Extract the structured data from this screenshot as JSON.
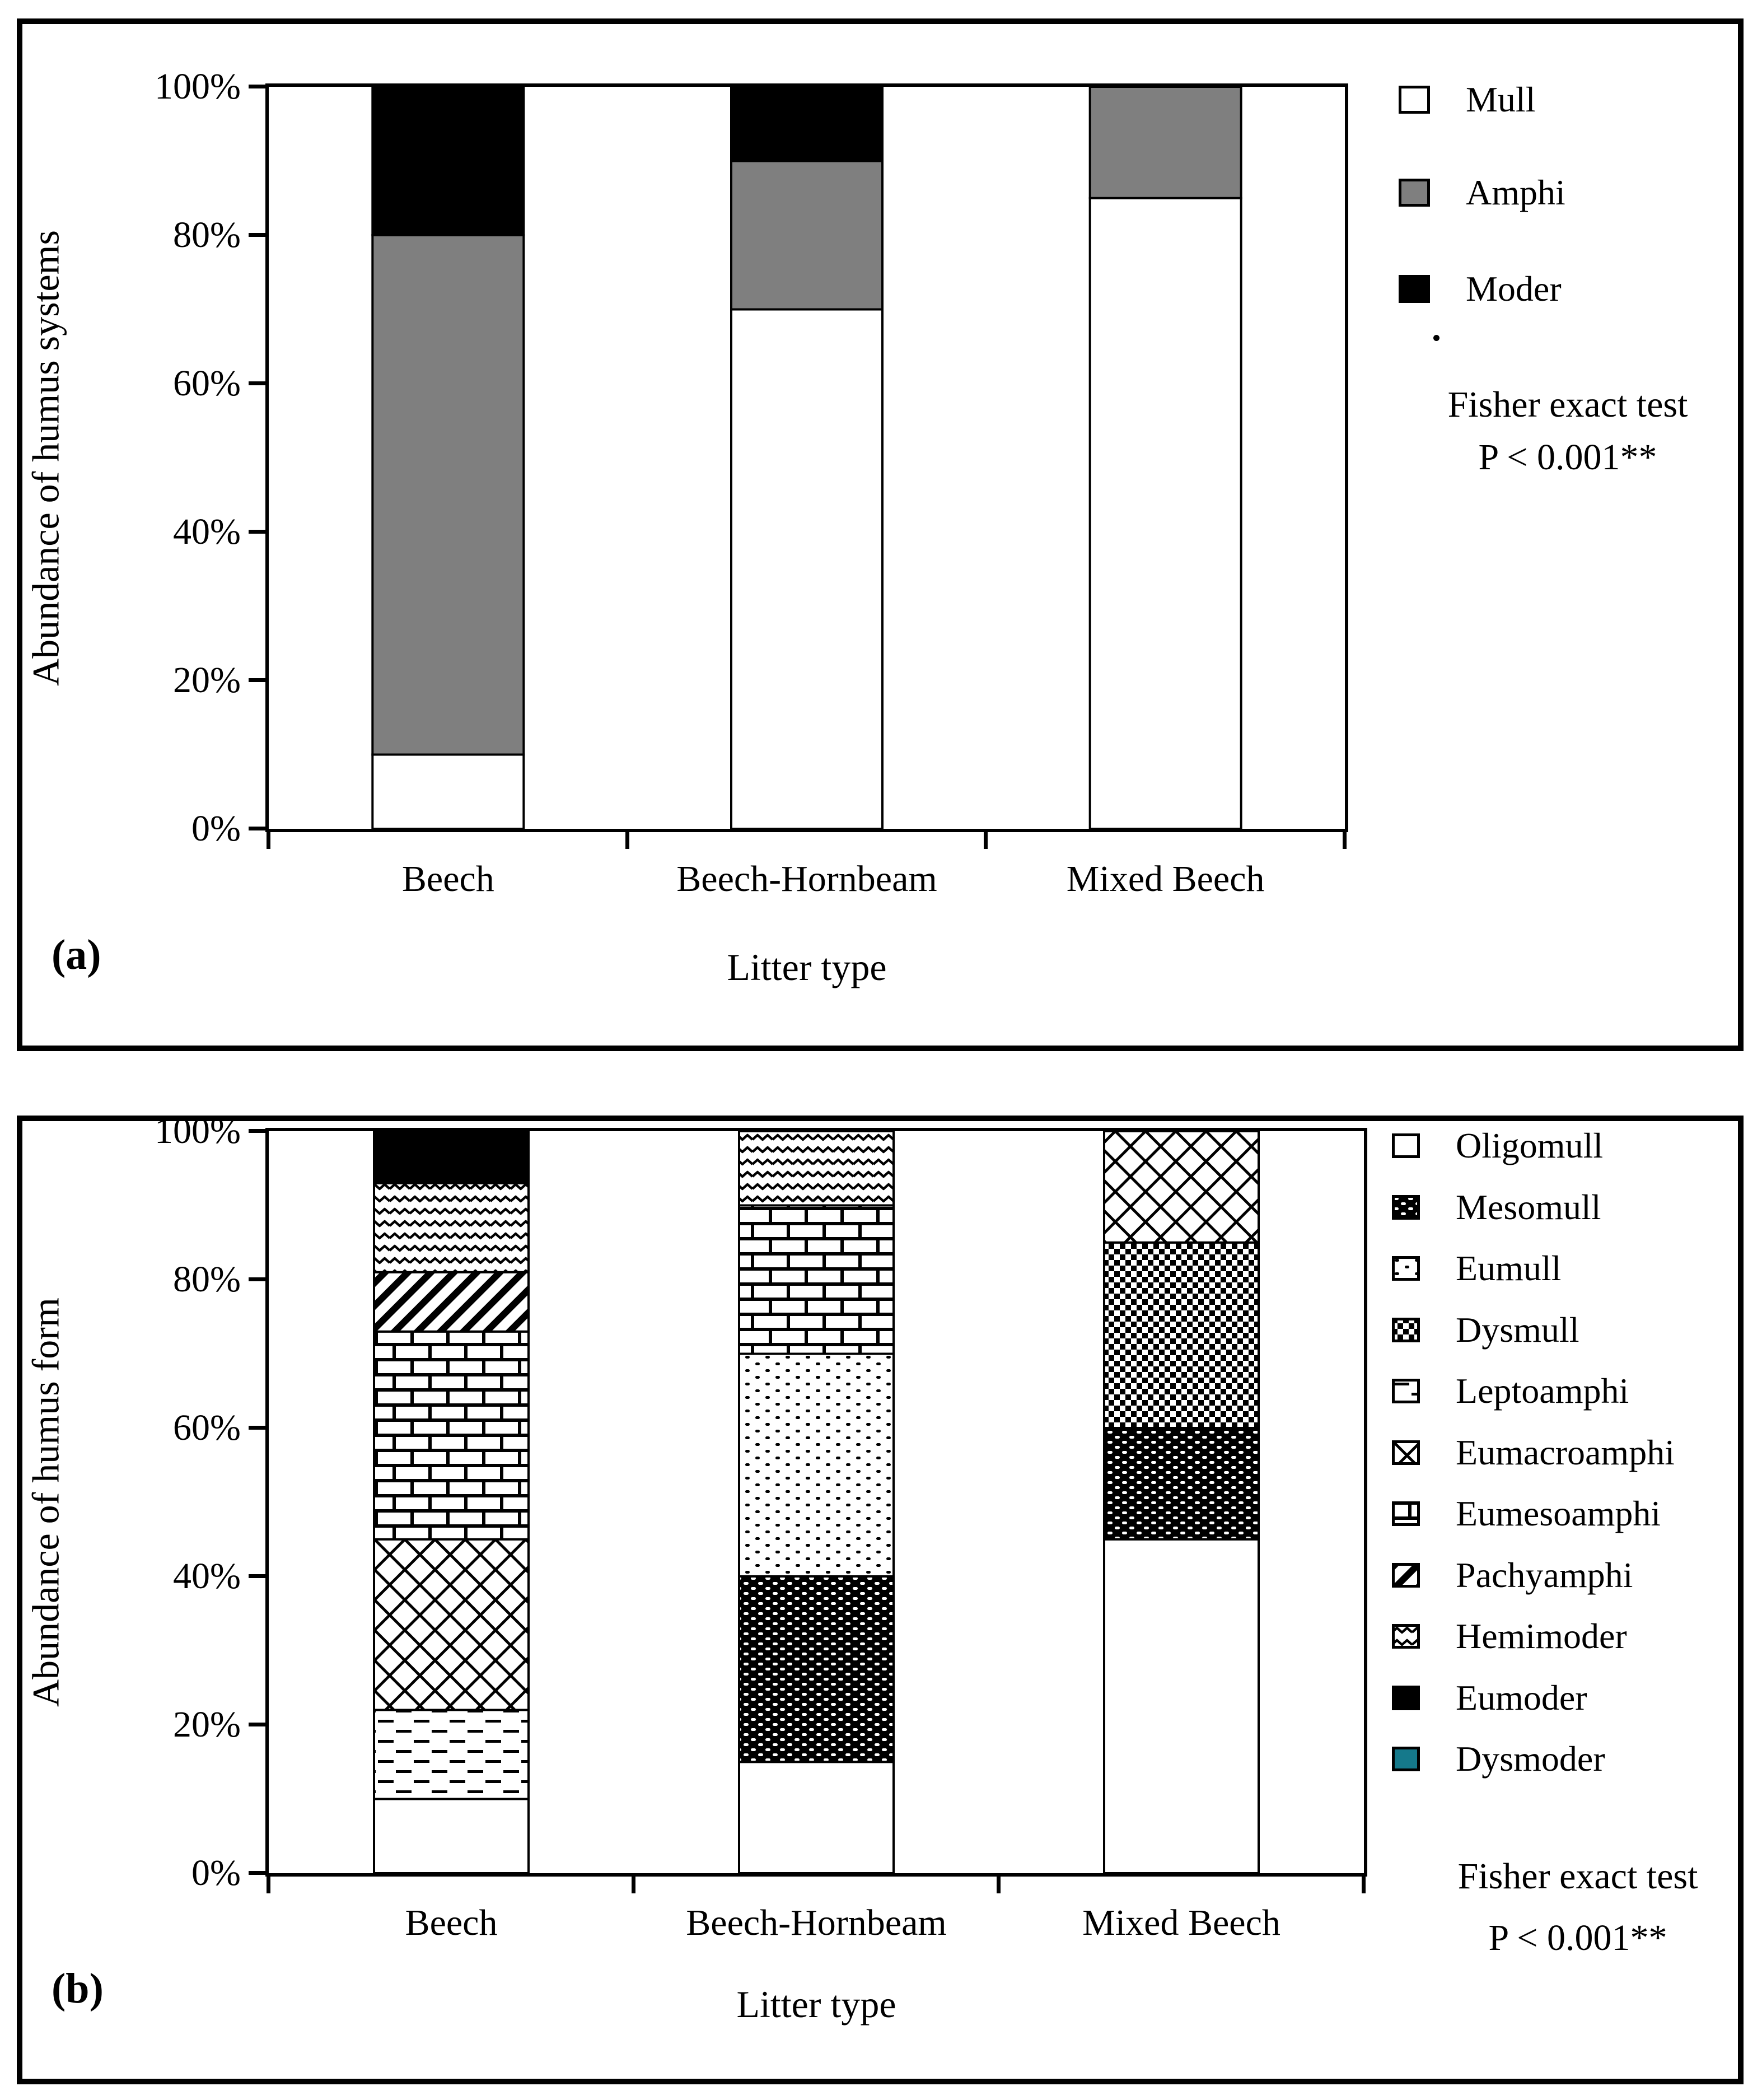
{
  "colors": {
    "gray": "#7f7f7f",
    "black": "#000000",
    "white": "#ffffff",
    "teal": "#15798b"
  },
  "chart_data": [
    {
      "id": "a",
      "type": "bar",
      "stacked": true,
      "panel_label": "(a)",
      "xlabel": "Litter type",
      "ylabel": "Abundance of humus  systems",
      "categories": [
        "Beech",
        "Beech-Hornbeam",
        "Mixed Beech"
      ],
      "y_ticks": [
        "0%",
        "20%",
        "40%",
        "60%",
        "80%",
        "100%"
      ],
      "ylim": [
        0,
        100
      ],
      "grid": false,
      "legend_position": "right",
      "series": [
        {
          "name": "Mull",
          "pattern": "white",
          "values": [
            10,
            70,
            85
          ]
        },
        {
          "name": "Amphi",
          "pattern": "gray",
          "values": [
            70,
            20,
            15
          ]
        },
        {
          "name": "Moder",
          "pattern": "black",
          "values": [
            20,
            10,
            0
          ]
        }
      ],
      "annotation": {
        "line1": "Fisher exact test",
        "line2": "P < 0.001**"
      }
    },
    {
      "id": "b",
      "type": "bar",
      "stacked": true,
      "panel_label": "(b)",
      "xlabel": "Litter type",
      "ylabel": "Abundance of humus form",
      "categories": [
        "Beech",
        "Beech-Hornbeam",
        "Mixed Beech"
      ],
      "y_ticks": [
        "0%",
        "20%",
        "40%",
        "60%",
        "80%",
        "100%"
      ],
      "ylim": [
        0,
        100
      ],
      "grid": false,
      "legend_position": "right",
      "series": [
        {
          "name": "Oligomull",
          "pattern": "white",
          "values": [
            10,
            15,
            45
          ]
        },
        {
          "name": "Mesomull",
          "pattern": "mesomull",
          "values": [
            0,
            25,
            15
          ]
        },
        {
          "name": "Eumull",
          "pattern": "eumull",
          "values": [
            0,
            30,
            0
          ]
        },
        {
          "name": "Dysmull",
          "pattern": "dysmull",
          "values": [
            0,
            0,
            25
          ]
        },
        {
          "name": "Leptoamphi",
          "pattern": "leptoamphi",
          "values": [
            12,
            0,
            0
          ]
        },
        {
          "name": "Eumacroamphi",
          "pattern": "eumacroamphi",
          "values": [
            23,
            0,
            15
          ]
        },
        {
          "name": "Eumesoamphi",
          "pattern": "eumesoamphi",
          "values": [
            28,
            20,
            0
          ]
        },
        {
          "name": "Pachyamphi",
          "pattern": "pachyamphi",
          "values": [
            8,
            0,
            0
          ]
        },
        {
          "name": "Hemimoder",
          "pattern": "hemimoder",
          "values": [
            12,
            10,
            0
          ]
        },
        {
          "name": "Eumoder",
          "pattern": "black",
          "values": [
            7,
            0,
            0
          ]
        },
        {
          "name": "Dysmoder",
          "pattern": "teal",
          "values": [
            0,
            0,
            0
          ]
        }
      ],
      "annotation": {
        "line1": "Fisher exact test",
        "line2": "P < 0.001**"
      }
    }
  ]
}
